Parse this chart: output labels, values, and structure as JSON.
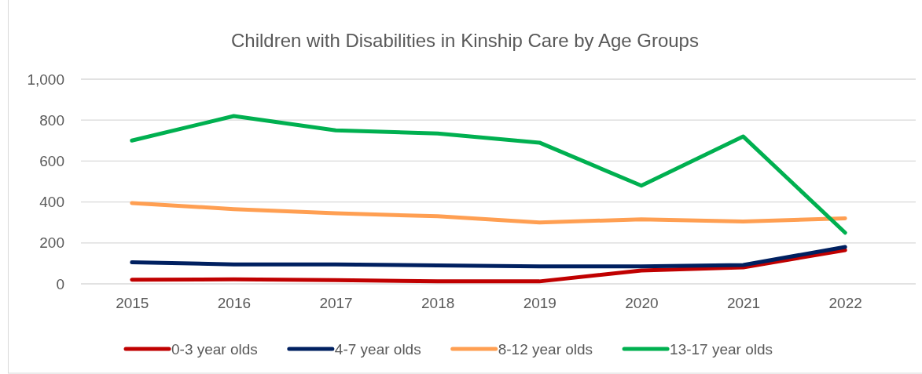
{
  "chart_data": {
    "type": "line",
    "title": "Children with Disabilities in Kinship Care by Age Groups",
    "categories": [
      "2015",
      "2016",
      "2017",
      "2018",
      "2019",
      "2020",
      "2021",
      "2022"
    ],
    "series": [
      {
        "name": "0-3 year olds",
        "color": "#c00000",
        "values": [
          20,
          22,
          18,
          12,
          12,
          65,
          80,
          165
        ]
      },
      {
        "name": "4-7 year olds",
        "color": "#002060",
        "values": [
          105,
          95,
          95,
          90,
          85,
          85,
          92,
          180
        ]
      },
      {
        "name": "8-12 year olds",
        "color": "#ff9f52",
        "values": [
          395,
          365,
          345,
          330,
          300,
          315,
          305,
          320
        ]
      },
      {
        "name": "13-17 year olds",
        "color": "#00b050",
        "values": [
          700,
          820,
          750,
          735,
          690,
          480,
          720,
          250
        ]
      }
    ],
    "ylim": [
      0,
      1000
    ],
    "yticks": [
      0,
      {
        "value": 200,
        "label": "200"
      },
      400,
      600,
      800,
      {
        "value": 1000,
        "label": "1,000"
      }
    ],
    "grid": "y",
    "legend": "bottom",
    "line_style": "solid",
    "marker": "none"
  }
}
